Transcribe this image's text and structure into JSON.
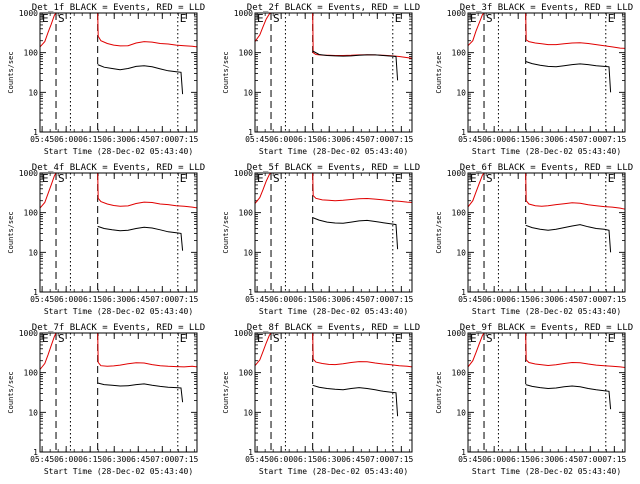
{
  "colors": {
    "events": "#000000",
    "lld": "#e00000",
    "axis": "#000000",
    "background": "#ffffff"
  },
  "chart_data": {
    "type": "line",
    "layout": "3x3 grid",
    "ylabel": "Counts/sec",
    "xlabel": "Start Time (28-Dec-02 05:43:40)",
    "yscale": "log",
    "ylim": [
      1,
      1000
    ],
    "yticks": [
      1,
      10,
      100,
      1000
    ],
    "xlim_min": [
      0,
      98
    ],
    "xtick_labels": [
      "05:45",
      "06:00",
      "06:15",
      "06:30",
      "06:45",
      "07:00",
      "07:15"
    ],
    "markers": [
      {
        "label": "E",
        "t": 0,
        "style": "none"
      },
      {
        "label": "S",
        "t": 10,
        "style": "dashed"
      },
      {
        "label": "",
        "t": 19,
        "style": "dotted"
      },
      {
        "label": "",
        "t": 36,
        "style": "dashed"
      },
      {
        "label": "E",
        "t": 86,
        "style": "dotted"
      }
    ],
    "panels": [
      {
        "title": "Det_1f BLACK = Events, RED = LLD",
        "events": {
          "t": [
            36,
            40,
            45,
            50,
            55,
            60,
            65,
            70,
            75,
            80,
            85,
            88,
            89
          ],
          "v": [
            50,
            43,
            40,
            37,
            40,
            45,
            47,
            44,
            39,
            35,
            33,
            32,
            9
          ]
        },
        "lld": {
          "t": [
            0,
            3,
            5,
            7,
            9,
            10,
            11,
            36,
            36.3,
            38,
            42,
            46,
            50,
            55,
            60,
            65,
            70,
            75,
            80,
            85,
            90,
            95,
            98
          ],
          "v": [
            140,
            190,
            320,
            520,
            880,
            1000,
            1000,
            1000,
            260,
            200,
            170,
            155,
            148,
            150,
            175,
            190,
            185,
            170,
            165,
            155,
            150,
            145,
            140
          ]
        }
      },
      {
        "title": "Det_2f BLACK = Events, RED = LLD",
        "events": {
          "t": [
            36,
            40,
            45,
            50,
            55,
            60,
            65,
            70,
            75,
            80,
            85,
            88,
            89
          ],
          "v": [
            110,
            90,
            85,
            83,
            82,
            83,
            86,
            88,
            88,
            85,
            82,
            80,
            20
          ]
        },
        "lld": {
          "t": [
            0,
            3,
            5,
            7,
            9,
            10,
            11,
            36,
            36.3,
            38,
            42,
            46,
            50,
            55,
            60,
            65,
            70,
            75,
            80,
            85,
            90,
            95,
            98
          ],
          "v": [
            190,
            280,
            450,
            700,
            950,
            1000,
            1000,
            1000,
            100,
            90,
            87,
            86,
            85,
            85,
            86,
            88,
            89,
            88,
            86,
            84,
            80,
            75,
            72
          ]
        }
      },
      {
        "title": "Det_3f BLACK = Events, RED = LLD",
        "events": {
          "t": [
            36,
            40,
            45,
            50,
            55,
            60,
            65,
            70,
            75,
            80,
            85,
            88,
            89
          ],
          "v": [
            60,
            53,
            48,
            45,
            44,
            47,
            50,
            52,
            50,
            47,
            45,
            44,
            10
          ]
        },
        "lld": {
          "t": [
            0,
            3,
            5,
            7,
            9,
            10,
            11,
            36,
            36.3,
            38,
            42,
            46,
            50,
            55,
            60,
            65,
            70,
            75,
            80,
            85,
            90,
            95,
            98
          ],
          "v": [
            150,
            200,
            350,
            560,
            900,
            1000,
            1000,
            1000,
            210,
            190,
            175,
            168,
            160,
            160,
            168,
            175,
            178,
            170,
            160,
            150,
            140,
            130,
            128
          ]
        }
      },
      {
        "title": "Det_4f BLACK = Events, RED = LLD",
        "events": {
          "t": [
            36,
            40,
            45,
            50,
            55,
            60,
            65,
            70,
            75,
            80,
            85,
            88,
            89
          ],
          "v": [
            45,
            40,
            37,
            35,
            36,
            40,
            43,
            41,
            37,
            33,
            31,
            30,
            11
          ]
        },
        "lld": {
          "t": [
            0,
            3,
            5,
            7,
            9,
            10,
            11,
            36,
            36.3,
            38,
            42,
            46,
            50,
            55,
            60,
            65,
            70,
            75,
            80,
            85,
            90,
            95,
            98
          ],
          "v": [
            130,
            180,
            300,
            500,
            850,
            1000,
            1000,
            1000,
            230,
            190,
            165,
            152,
            145,
            148,
            170,
            185,
            180,
            165,
            160,
            150,
            145,
            138,
            132
          ]
        }
      },
      {
        "title": "Det_5f BLACK = Events, RED = LLD",
        "events": {
          "t": [
            36,
            40,
            45,
            50,
            55,
            60,
            65,
            70,
            75,
            80,
            85,
            88,
            89
          ],
          "v": [
            75,
            65,
            58,
            55,
            54,
            58,
            62,
            64,
            60,
            56,
            52,
            50,
            12
          ]
        },
        "lld": {
          "t": [
            0,
            3,
            5,
            7,
            9,
            10,
            11,
            36,
            36.3,
            38,
            42,
            46,
            50,
            55,
            60,
            65,
            70,
            75,
            80,
            85,
            90,
            95,
            98
          ],
          "v": [
            170,
            240,
            380,
            620,
            920,
            1000,
            1000,
            1000,
            270,
            230,
            210,
            205,
            200,
            205,
            215,
            225,
            228,
            220,
            210,
            200,
            195,
            185,
            180
          ]
        }
      },
      {
        "title": "Det_6f BLACK = Events, RED = LLD",
        "events": {
          "t": [
            36,
            40,
            45,
            50,
            55,
            60,
            65,
            70,
            75,
            80,
            85,
            88,
            89
          ],
          "v": [
            48,
            42,
            38,
            36,
            38,
            42,
            46,
            50,
            44,
            40,
            38,
            36,
            10
          ]
        },
        "lld": {
          "t": [
            0,
            3,
            5,
            7,
            9,
            10,
            11,
            36,
            36.3,
            38,
            42,
            46,
            50,
            55,
            60,
            65,
            70,
            75,
            80,
            85,
            90,
            95,
            98
          ],
          "v": [
            140,
            200,
            330,
            540,
            880,
            1000,
            1000,
            1000,
            200,
            165,
            150,
            145,
            150,
            160,
            168,
            178,
            172,
            158,
            150,
            142,
            138,
            130,
            122
          ]
        }
      },
      {
        "title": "Det_7f BLACK = Events, RED = LLD",
        "events": {
          "t": [
            36,
            40,
            45,
            50,
            55,
            60,
            65,
            70,
            75,
            80,
            85,
            88,
            89
          ],
          "v": [
            55,
            50,
            48,
            46,
            47,
            50,
            52,
            48,
            45,
            43,
            42,
            41,
            18
          ]
        },
        "lld": {
          "t": [
            0,
            3,
            5,
            7,
            9,
            10,
            11,
            36,
            36.3,
            38,
            42,
            46,
            50,
            55,
            60,
            65,
            70,
            75,
            80,
            85,
            90,
            95,
            98
          ],
          "v": [
            120,
            170,
            280,
            480,
            820,
            1000,
            1000,
            1000,
            180,
            150,
            145,
            148,
            155,
            168,
            178,
            175,
            160,
            150,
            145,
            142,
            140,
            145,
            140
          ]
        }
      },
      {
        "title": "Det_8f BLACK = Events, RED = LLD",
        "events": {
          "t": [
            36,
            40,
            45,
            50,
            55,
            60,
            65,
            70,
            75,
            80,
            85,
            88,
            89
          ],
          "v": [
            48,
            43,
            40,
            38,
            37,
            40,
            42,
            40,
            37,
            34,
            32,
            31,
            8
          ]
        },
        "lld": {
          "t": [
            0,
            3,
            5,
            7,
            9,
            10,
            11,
            36,
            36.3,
            38,
            42,
            46,
            50,
            55,
            60,
            65,
            70,
            75,
            80,
            85,
            90,
            95,
            98
          ],
          "v": [
            150,
            210,
            340,
            560,
            880,
            1000,
            1000,
            1000,
            220,
            185,
            170,
            162,
            160,
            168,
            180,
            190,
            188,
            175,
            165,
            158,
            150,
            145,
            140
          ]
        }
      },
      {
        "title": "Det_9f BLACK = Events, RED = LLD",
        "events": {
          "t": [
            36,
            40,
            45,
            50,
            55,
            60,
            65,
            70,
            75,
            80,
            85,
            88,
            89
          ],
          "v": [
            50,
            45,
            42,
            40,
            41,
            44,
            46,
            44,
            40,
            37,
            35,
            34,
            12
          ]
        },
        "lld": {
          "t": [
            0,
            3,
            5,
            7,
            9,
            10,
            11,
            36,
            36.3,
            38,
            42,
            46,
            50,
            55,
            60,
            65,
            70,
            75,
            80,
            85,
            90,
            95,
            98
          ],
          "v": [
            140,
            200,
            320,
            530,
            860,
            1000,
            1000,
            1000,
            210,
            180,
            165,
            158,
            152,
            158,
            170,
            180,
            178,
            165,
            155,
            150,
            145,
            140,
            135
          ]
        }
      }
    ]
  }
}
